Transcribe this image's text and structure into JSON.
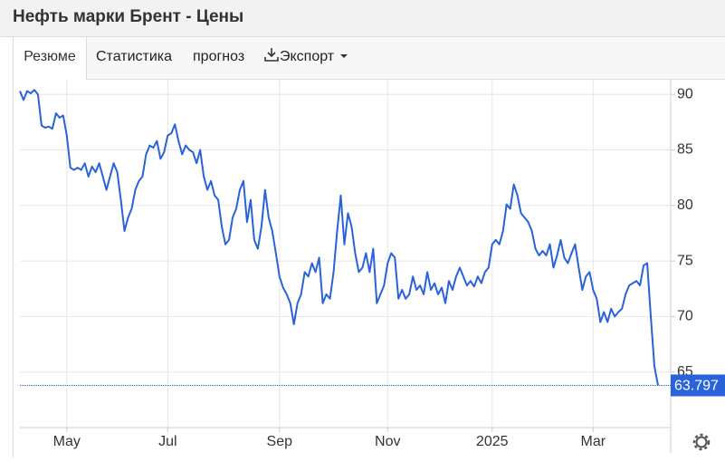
{
  "header": {
    "title": "Нефть марки Брент - Цены"
  },
  "tabs": [
    "Резюме",
    "Статистика",
    "прогноз",
    "Экспорт"
  ],
  "chart_data": {
    "type": "line",
    "series": [
      {
        "color": "#2962d9",
        "values": [
          90.3,
          89.5,
          90.3,
          90.1,
          90.4,
          90,
          87.2,
          87,
          87.1,
          86.9,
          88.3,
          87.9,
          88.1,
          86.3,
          83.4,
          83.2,
          83.4,
          83.2,
          83.8,
          82.6,
          83.5,
          83,
          83.8,
          82.6,
          81.4,
          82.6,
          83.8,
          83,
          80.5,
          77.7,
          78.9,
          79.7,
          81.4,
          82.2,
          82.6,
          84.6,
          85.4,
          85.2,
          85.8,
          84.2,
          84.8,
          86.3,
          86.5,
          87.3,
          85.8,
          84.6,
          85.4,
          85,
          84.8,
          83.8,
          85,
          82.6,
          81.4,
          82.2,
          80.9,
          80.5,
          78.1,
          76.5,
          76.9,
          78.9,
          79.7,
          81.4,
          82.2,
          78.5,
          80.5,
          76.9,
          76.1,
          78.1,
          81.4,
          78.9,
          77.7,
          75.7,
          73.6,
          72.6,
          72,
          71.2,
          69.3,
          71.2,
          72,
          74,
          73.6,
          74.8,
          74,
          75.3,
          71.2,
          72,
          71.6,
          74,
          77.7,
          80.9,
          76.5,
          79.3,
          78.1,
          75.7,
          74,
          74.4,
          75.7,
          74,
          76.1,
          71.2,
          72,
          72.8,
          74.8,
          75.7,
          75.3,
          71.6,
          72.4,
          71.6,
          72,
          73.6,
          72.4,
          72.8,
          72,
          74,
          72.4,
          73,
          72,
          72.6,
          71.2,
          73.2,
          72.4,
          73.6,
          74.4,
          73.6,
          72.8,
          73.2,
          72.7,
          73.6,
          73,
          74,
          74.4,
          76.5,
          76.9,
          76.5,
          77.7,
          80.1,
          79.7,
          81.9,
          80.9,
          79.3,
          78.9,
          78.5,
          77.7,
          76.1,
          75.5,
          75.9,
          75.5,
          76.5,
          74.4,
          75.5,
          76.9,
          75.3,
          74.8,
          75.7,
          76.5,
          74.4,
          72.4,
          73.6,
          74,
          72.4,
          71.6,
          69.5,
          70.4,
          69.5,
          70.7,
          70,
          70.4,
          70.7,
          72,
          72.8,
          73,
          73.2,
          72.8,
          74.6,
          74.8,
          70,
          65.5,
          63.797
        ]
      }
    ],
    "xlim": [
      0,
      177
    ],
    "xticks": [
      {
        "value": 13,
        "label": "May"
      },
      {
        "value": 41,
        "label": "Jul"
      },
      {
        "value": 72,
        "label": "Sep"
      },
      {
        "value": 102,
        "label": "Nov"
      },
      {
        "value": 131,
        "label": "2025"
      },
      {
        "value": 159,
        "label": "Mar"
      }
    ],
    "ylim": [
      60,
      90.75
    ],
    "yticks": [
      65,
      70,
      75,
      80,
      85,
      90
    ],
    "grid": true,
    "last_value_marker_color": "#2962d9"
  }
}
